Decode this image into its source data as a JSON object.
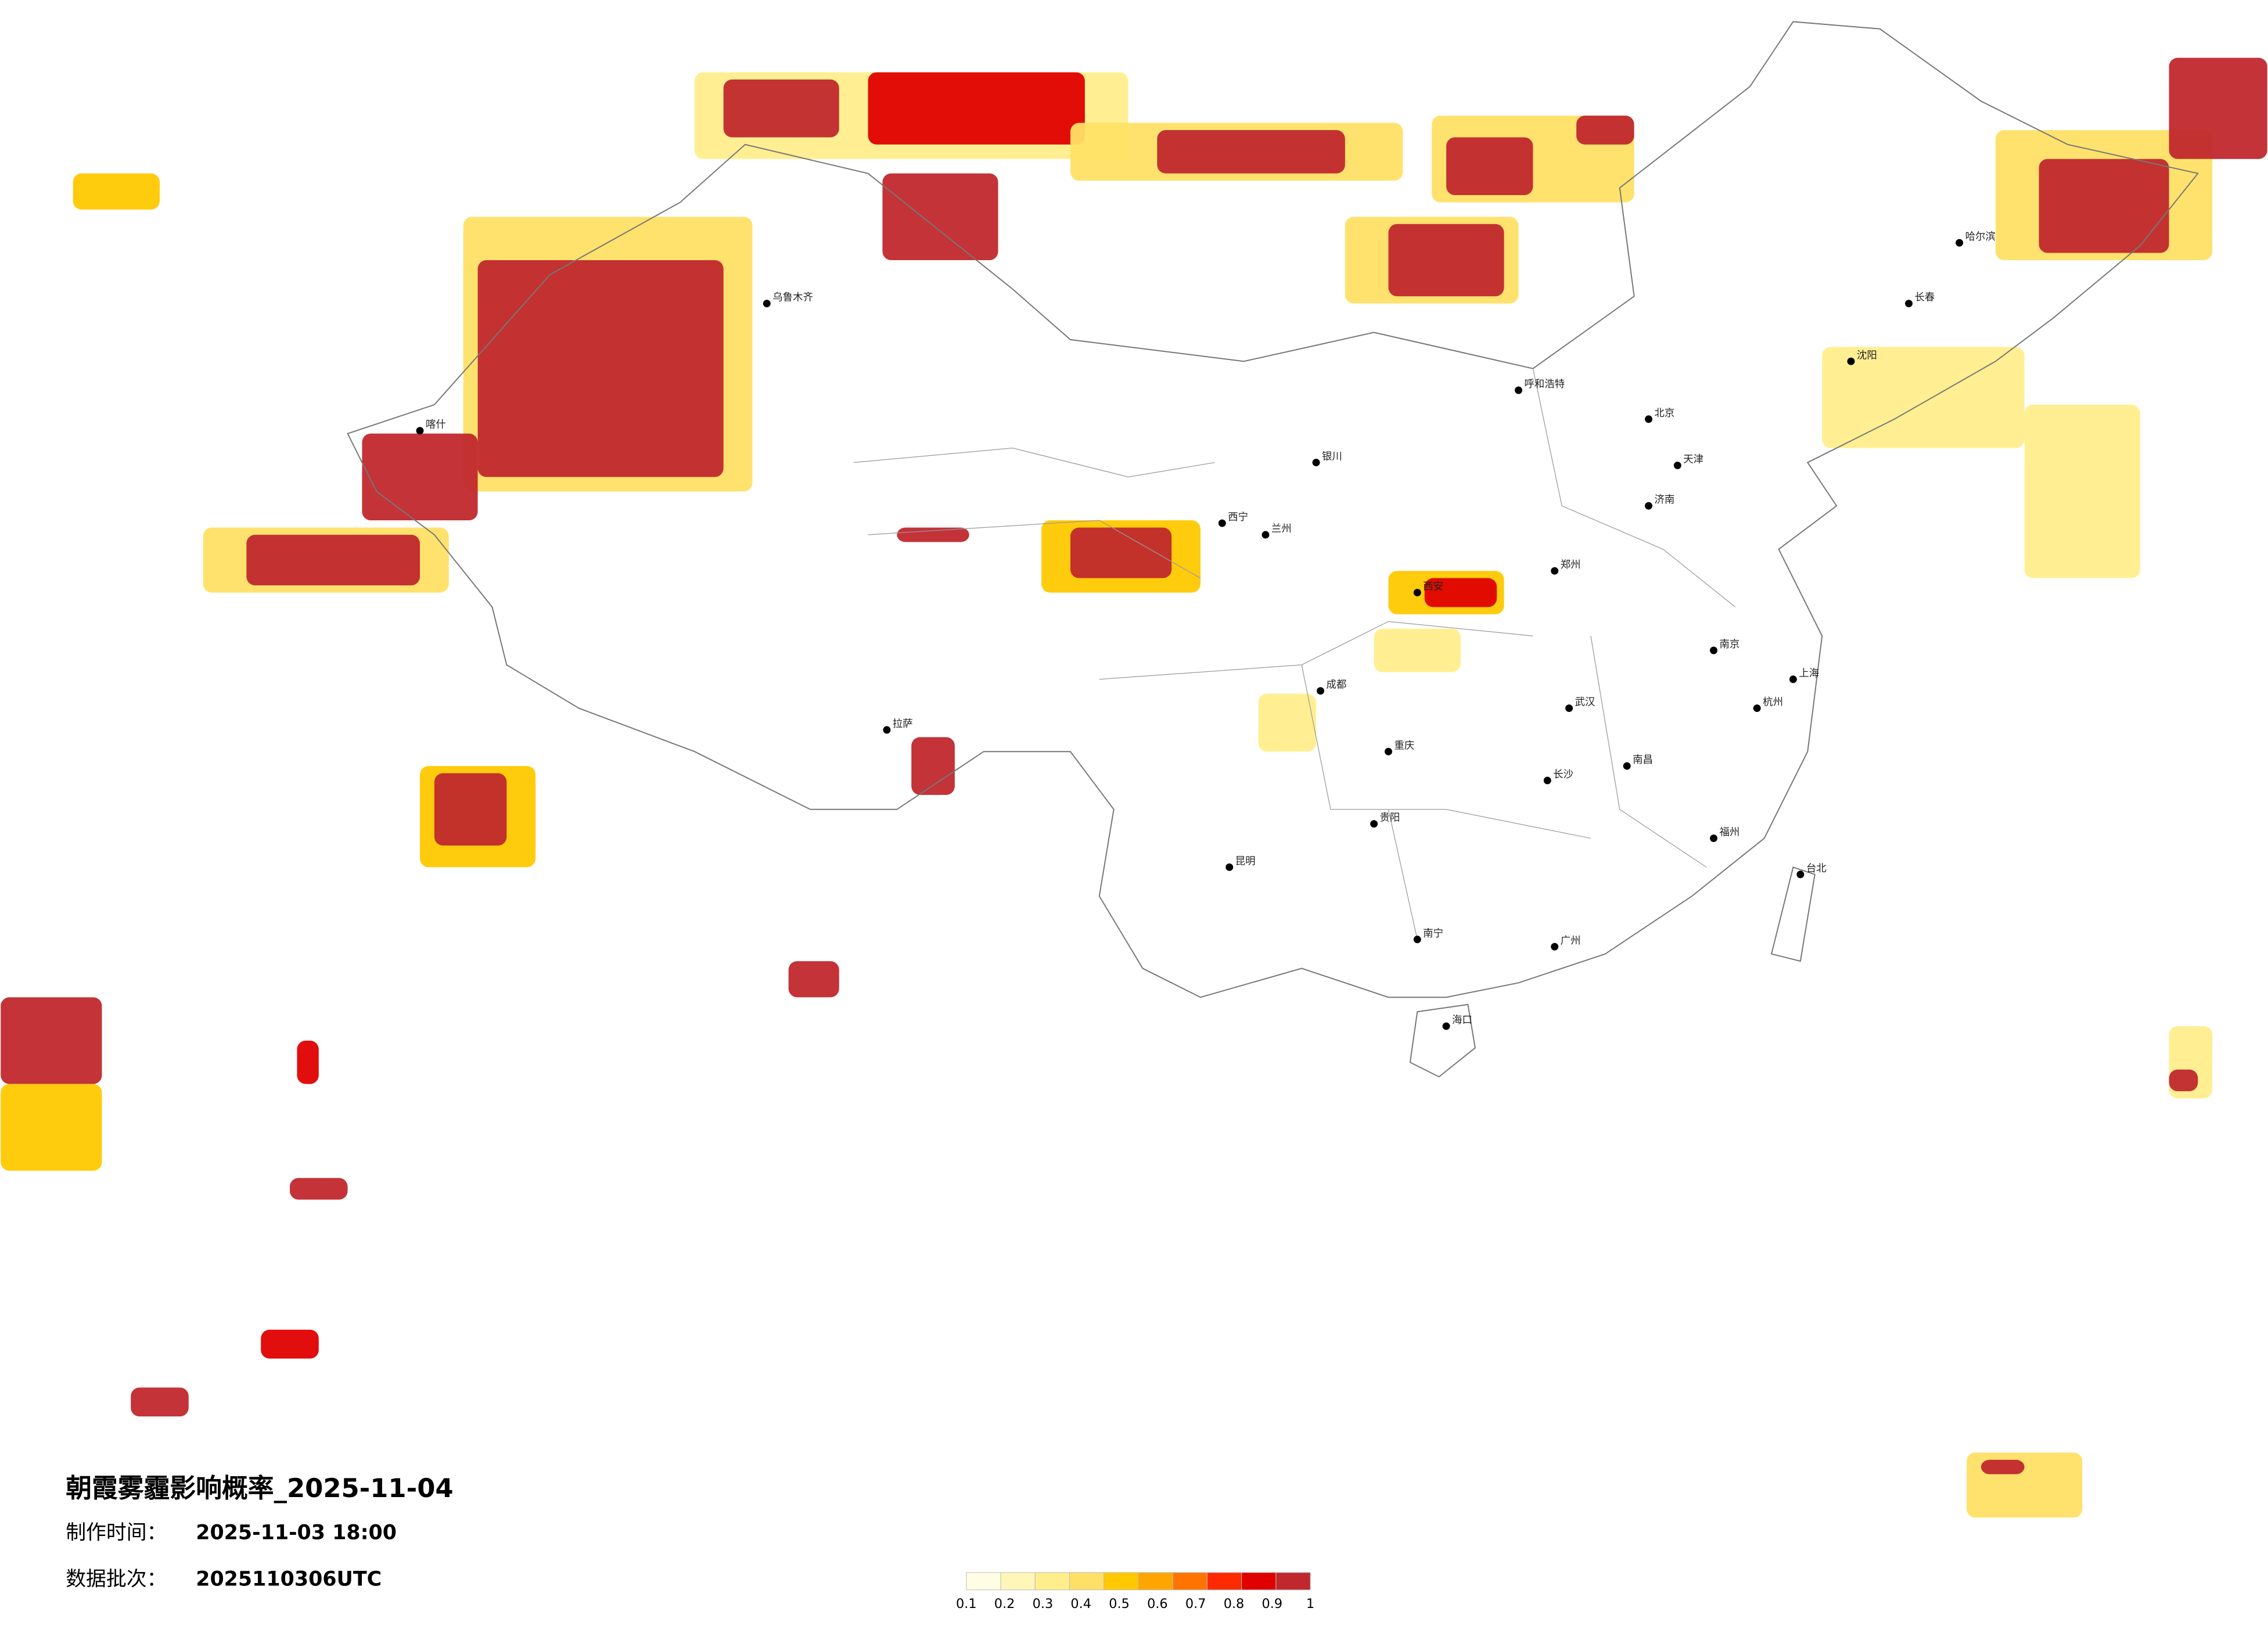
{
  "header": {
    "title": "朝霞雾霾影响概率_2025-11-04",
    "made_label": "制作时间：",
    "made_time": "2025-11-03 18:00",
    "batch_label": "数据批次：",
    "batch": "2025110306UTC"
  },
  "legend": {
    "ticks": [
      0.1,
      0.2,
      0.3,
      0.4,
      0.5,
      0.6,
      0.7,
      0.8,
      0.9,
      1
    ],
    "colors": [
      "#fffde3",
      "#fff6b8",
      "#ffee8c",
      "#ffe066",
      "#ffc800",
      "#ffa500",
      "#ff7400",
      "#ff2a00",
      "#e00000",
      "#c0282d"
    ]
  },
  "cities": [
    "北京",
    "天津",
    "上海",
    "广州",
    "拉萨",
    "乌鲁木齐",
    "哈尔滨",
    "长沙",
    "成都",
    "西安",
    "武汉",
    "重庆",
    "昆明",
    "南宁",
    "兰州",
    "西宁",
    "银川",
    "呼和浩特",
    "郑州",
    "济南",
    "南京",
    "杭州",
    "福州",
    "海口",
    "台北",
    "沈阳",
    "长春",
    "贵阳",
    "南昌",
    "喀什"
  ]
}
